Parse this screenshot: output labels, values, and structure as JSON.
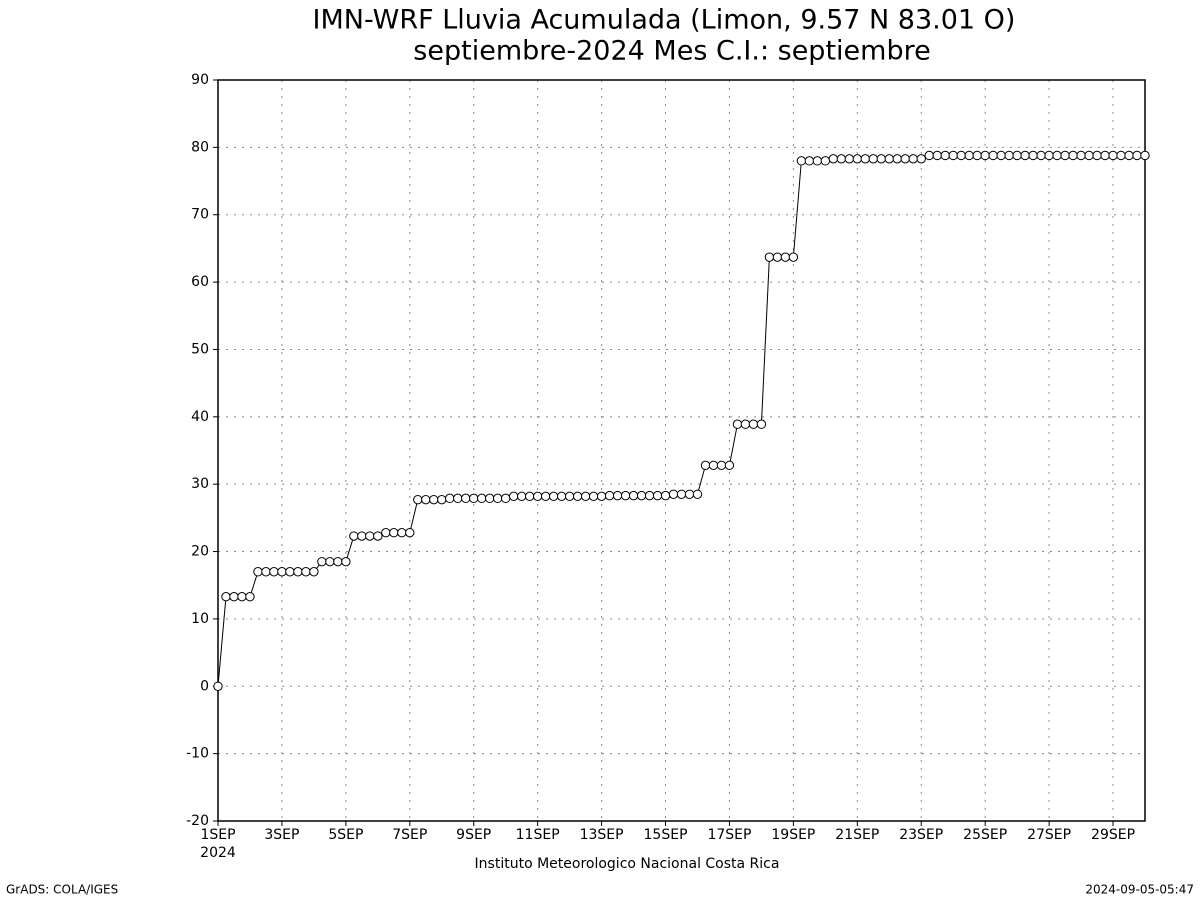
{
  "chart_data": {
    "type": "line",
    "title": "IMN-WRF  Lluvia Acumulada (Limon, 9.57  N 83.01  O)",
    "subtitle": "septiembre-2024 Mes C.I.: septiembre",
    "xlabel": "Instituto Meteorologico Nacional Costa Rica",
    "x_year_label": "2024",
    "footer_left": "GrADS: COLA/IGES",
    "footer_right": "2024-09-05-05:47",
    "color": "#000000",
    "marker_fill": "#ffffff",
    "grid": true,
    "xlim": [
      1,
      30
    ],
    "ylim": [
      -20,
      90
    ],
    "yticks": [
      -20,
      -10,
      0,
      10,
      20,
      30,
      40,
      50,
      60,
      70,
      80,
      90
    ],
    "xticks": [
      {
        "value": 1,
        "label": "1SEP"
      },
      {
        "value": 3,
        "label": "3SEP"
      },
      {
        "value": 5,
        "label": "5SEP"
      },
      {
        "value": 7,
        "label": "7SEP"
      },
      {
        "value": 9,
        "label": "9SEP"
      },
      {
        "value": 11,
        "label": "11SEP"
      },
      {
        "value": 13,
        "label": "13SEP"
      },
      {
        "value": 15,
        "label": "15SEP"
      },
      {
        "value": 17,
        "label": "17SEP"
      },
      {
        "value": 19,
        "label": "19SEP"
      },
      {
        "value": 21,
        "label": "21SEP"
      },
      {
        "value": 23,
        "label": "23SEP"
      },
      {
        "value": 25,
        "label": "25SEP"
      },
      {
        "value": 27,
        "label": "27SEP"
      },
      {
        "value": 29,
        "label": "29SEP"
      }
    ],
    "x": [
      1,
      1.25,
      1.5,
      1.75,
      2,
      2.25,
      2.5,
      2.75,
      3,
      3.25,
      3.5,
      3.75,
      4,
      4.25,
      4.5,
      4.75,
      5,
      5.25,
      5.5,
      5.75,
      6,
      6.25,
      6.5,
      6.75,
      7,
      7.25,
      7.5,
      7.75,
      8,
      8.25,
      8.5,
      8.75,
      9,
      9.25,
      9.5,
      9.75,
      10,
      10.25,
      10.5,
      10.75,
      11,
      11.25,
      11.5,
      11.75,
      12,
      12.25,
      12.5,
      12.75,
      13,
      13.25,
      13.5,
      13.75,
      14,
      14.25,
      14.5,
      14.75,
      15,
      15.25,
      15.5,
      15.75,
      16,
      16.25,
      16.5,
      16.75,
      17,
      17.25,
      17.5,
      17.75,
      18,
      18.25,
      18.5,
      18.75,
      19,
      19.25,
      19.5,
      19.75,
      20,
      20.25,
      20.5,
      20.75,
      21,
      21.25,
      21.5,
      21.75,
      22,
      22.25,
      22.5,
      22.75,
      23,
      23.25,
      23.5,
      23.75,
      24,
      24.25,
      24.5,
      24.75,
      25,
      25.25,
      25.5,
      25.75,
      26,
      26.25,
      26.5,
      26.75,
      27,
      27.25,
      27.5,
      27.75,
      28,
      28.25,
      28.5,
      28.75,
      29,
      29.25,
      29.5,
      29.75,
      30
    ],
    "values": [
      0,
      13.3,
      13.3,
      13.3,
      13.3,
      17.0,
      17.0,
      17.0,
      17.0,
      17.0,
      17.0,
      17.0,
      17.0,
      18.5,
      18.5,
      18.5,
      18.5,
      22.3,
      22.3,
      22.3,
      22.3,
      22.8,
      22.8,
      22.8,
      22.8,
      27.7,
      27.7,
      27.7,
      27.7,
      27.9,
      27.9,
      27.9,
      27.9,
      27.9,
      27.9,
      27.9,
      27.9,
      28.2,
      28.2,
      28.2,
      28.2,
      28.2,
      28.2,
      28.2,
      28.2,
      28.2,
      28.2,
      28.2,
      28.2,
      28.3,
      28.3,
      28.3,
      28.3,
      28.3,
      28.3,
      28.3,
      28.3,
      28.5,
      28.5,
      28.5,
      28.5,
      32.8,
      32.8,
      32.8,
      32.8,
      38.9,
      38.9,
      38.9,
      38.9,
      63.7,
      63.7,
      63.7,
      63.7,
      78.0,
      78.0,
      78.0,
      78.0,
      78.3,
      78.3,
      78.3,
      78.3,
      78.3,
      78.3,
      78.3,
      78.3,
      78.3,
      78.3,
      78.3,
      78.3,
      78.8,
      78.8,
      78.8,
      78.8,
      78.8,
      78.8,
      78.8,
      78.8,
      78.8,
      78.8,
      78.8,
      78.8,
      78.8,
      78.8,
      78.8,
      78.8,
      78.8,
      78.8,
      78.8,
      78.8,
      78.8,
      78.8,
      78.8,
      78.8,
      78.8,
      78.8,
      78.8,
      78.8
    ]
  }
}
